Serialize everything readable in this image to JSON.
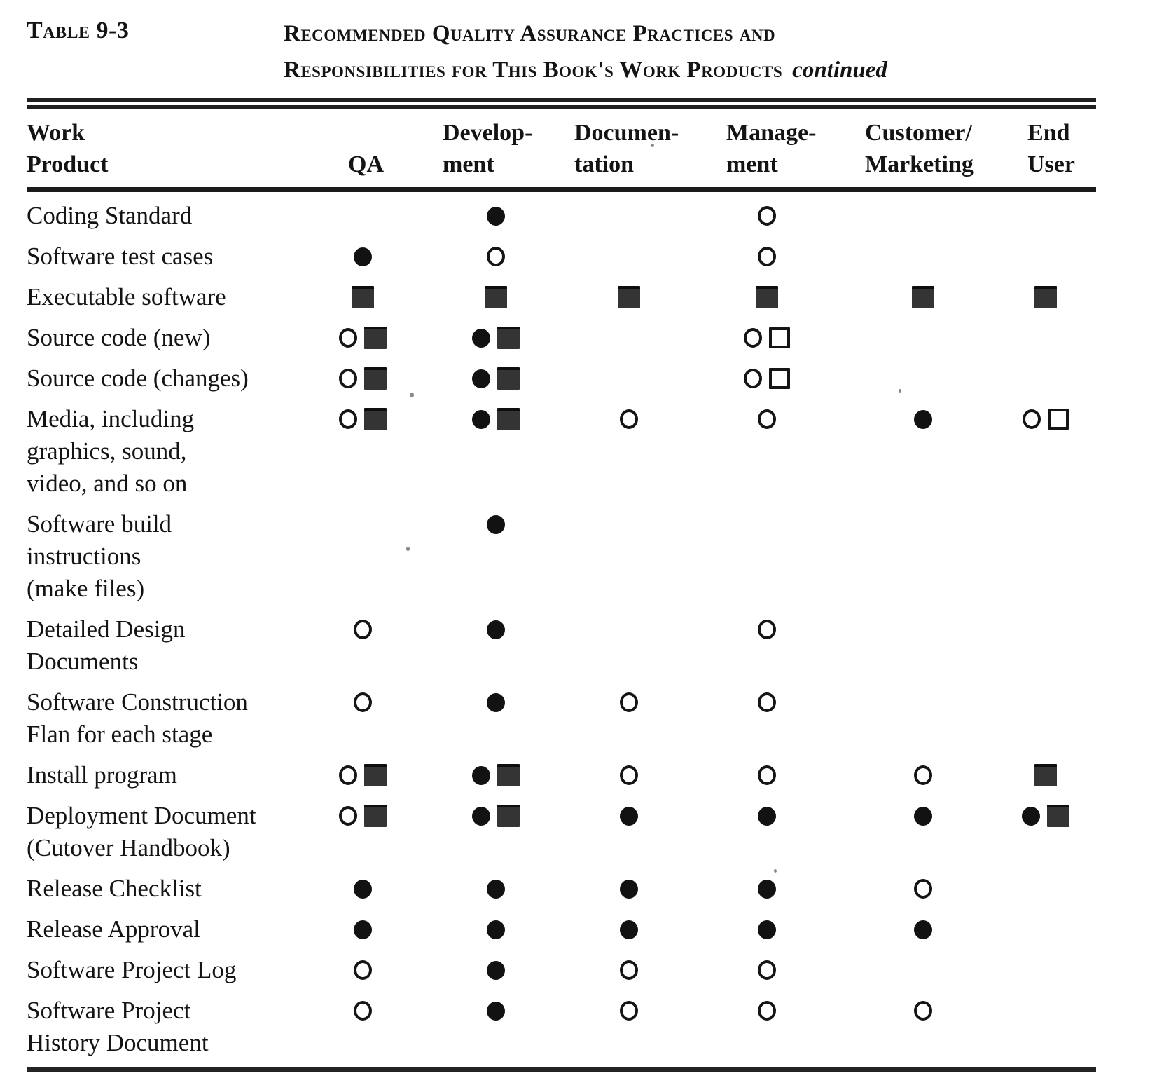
{
  "header": {
    "table_label": "Table 9-3",
    "title_line1": "Recommended Quality Assurance Practices and",
    "title_line2": "Responsibilities for This Book's Work Products",
    "continued_note": "continued"
  },
  "icons": {
    "filled-circle": "●",
    "open-circle": "○",
    "filled-square": "■",
    "open-square": "□"
  },
  "colors": {
    "ink": "#161616",
    "square_fill": "#353535",
    "rule": "#222222",
    "background": "#ffffff"
  },
  "table": {
    "columns": [
      {
        "key": "work_product",
        "lines": [
          "Work",
          "Product"
        ]
      },
      {
        "key": "qa",
        "lines": [
          "QA"
        ]
      },
      {
        "key": "development",
        "lines": [
          "Develop-",
          "ment"
        ]
      },
      {
        "key": "documentation",
        "lines": [
          "Documen-",
          "tation"
        ]
      },
      {
        "key": "management",
        "lines": [
          "Manage-",
          "ment"
        ]
      },
      {
        "key": "customer_marketing",
        "lines": [
          "Customer/",
          "Marketing"
        ]
      },
      {
        "key": "end_user",
        "lines": [
          "End",
          "User"
        ]
      }
    ],
    "rows": [
      {
        "label_lines": [
          "Coding Standard"
        ],
        "cells": {
          "qa": [],
          "development": [
            "filled-circle"
          ],
          "documentation": [],
          "management": [
            "open-circle"
          ],
          "customer_marketing": [],
          "end_user": []
        }
      },
      {
        "label_lines": [
          "Software test cases"
        ],
        "cells": {
          "qa": [
            "filled-circle"
          ],
          "development": [
            "open-circle"
          ],
          "documentation": [],
          "management": [
            "open-circle"
          ],
          "customer_marketing": [],
          "end_user": []
        }
      },
      {
        "label_lines": [
          "Executable software"
        ],
        "cells": {
          "qa": [
            "filled-square"
          ],
          "development": [
            "filled-square"
          ],
          "documentation": [
            "filled-square"
          ],
          "management": [
            "filled-square"
          ],
          "customer_marketing": [
            "filled-square"
          ],
          "end_user": [
            "filled-square"
          ]
        }
      },
      {
        "label_lines": [
          "Source code (new)"
        ],
        "cells": {
          "qa": [
            "open-circle",
            "filled-square"
          ],
          "development": [
            "filled-circle",
            "filled-square"
          ],
          "documentation": [],
          "management": [
            "open-circle",
            "open-square"
          ],
          "customer_marketing": [],
          "end_user": []
        }
      },
      {
        "label_lines": [
          "Source code (changes)"
        ],
        "cells": {
          "qa": [
            "open-circle",
            "filled-square"
          ],
          "development": [
            "filled-circle",
            "filled-square"
          ],
          "documentation": [],
          "management": [
            "open-circle",
            "open-square"
          ],
          "customer_marketing": [],
          "end_user": []
        }
      },
      {
        "label_lines": [
          "Media, including",
          "graphics, sound,",
          "video, and so on"
        ],
        "cells": {
          "qa": [
            "open-circle",
            "filled-square"
          ],
          "development": [
            "filled-circle",
            "filled-square"
          ],
          "documentation": [
            "open-circle"
          ],
          "management": [
            "open-circle"
          ],
          "customer_marketing": [
            "filled-circle"
          ],
          "end_user": [
            "open-circle",
            "open-square"
          ]
        }
      },
      {
        "label_lines": [
          "Software  build",
          "instructions",
          "(make files)"
        ],
        "cells": {
          "qa": [],
          "development": [
            "filled-circle"
          ],
          "documentation": [],
          "management": [],
          "customer_marketing": [],
          "end_user": []
        }
      },
      {
        "label_lines": [
          "Detailed Design",
          "Documents"
        ],
        "cells": {
          "qa": [
            "open-circle"
          ],
          "development": [
            "filled-circle"
          ],
          "documentation": [],
          "management": [
            "open-circle"
          ],
          "customer_marketing": [],
          "end_user": []
        }
      },
      {
        "label_lines": [
          "Software  Construction",
          "Flan for each stage"
        ],
        "cells": {
          "qa": [
            "open-circle"
          ],
          "development": [
            "filled-circle"
          ],
          "documentation": [
            "open-circle"
          ],
          "management": [
            "open-circle"
          ],
          "customer_marketing": [],
          "end_user": []
        }
      },
      {
        "label_lines": [
          "Install program"
        ],
        "cells": {
          "qa": [
            "open-circle",
            "filled-square"
          ],
          "development": [
            "filled-circle",
            "filled-square"
          ],
          "documentation": [
            "open-circle"
          ],
          "management": [
            "open-circle"
          ],
          "customer_marketing": [
            "open-circle"
          ],
          "end_user": [
            "filled-square"
          ]
        }
      },
      {
        "label_lines": [
          "Deployment Document",
          "(Cutover  Handbook)"
        ],
        "cells": {
          "qa": [
            "open-circle",
            "filled-square"
          ],
          "development": [
            "filled-circle",
            "filled-square"
          ],
          "documentation": [
            "filled-circle"
          ],
          "management": [
            "filled-circle"
          ],
          "customer_marketing": [
            "filled-circle"
          ],
          "end_user": [
            "filled-circle",
            "filled-square"
          ]
        }
      },
      {
        "label_lines": [
          "Release  Checklist"
        ],
        "cells": {
          "qa": [
            "filled-circle"
          ],
          "development": [
            "filled-circle"
          ],
          "documentation": [
            "filled-circle"
          ],
          "management": [
            "filled-circle"
          ],
          "customer_marketing": [
            "open-circle"
          ],
          "end_user": []
        }
      },
      {
        "label_lines": [
          "Release  Approval"
        ],
        "cells": {
          "qa": [
            "filled-circle"
          ],
          "development": [
            "filled-circle"
          ],
          "documentation": [
            "filled-circle"
          ],
          "management": [
            "filled-circle"
          ],
          "customer_marketing": [
            "filled-circle"
          ],
          "end_user": []
        }
      },
      {
        "label_lines": [
          "Software Project Log"
        ],
        "cells": {
          "qa": [
            "open-circle"
          ],
          "development": [
            "filled-circle"
          ],
          "documentation": [
            "open-circle"
          ],
          "management": [
            "open-circle"
          ],
          "customer_marketing": [],
          "end_user": []
        }
      },
      {
        "label_lines": [
          "Software Project",
          "History Document"
        ],
        "cells": {
          "qa": [
            "open-circle"
          ],
          "development": [
            "filled-circle"
          ],
          "documentation": [
            "open-circle"
          ],
          "management": [
            "open-circle"
          ],
          "customer_marketing": [
            "open-circle"
          ],
          "end_user": []
        }
      }
    ]
  }
}
